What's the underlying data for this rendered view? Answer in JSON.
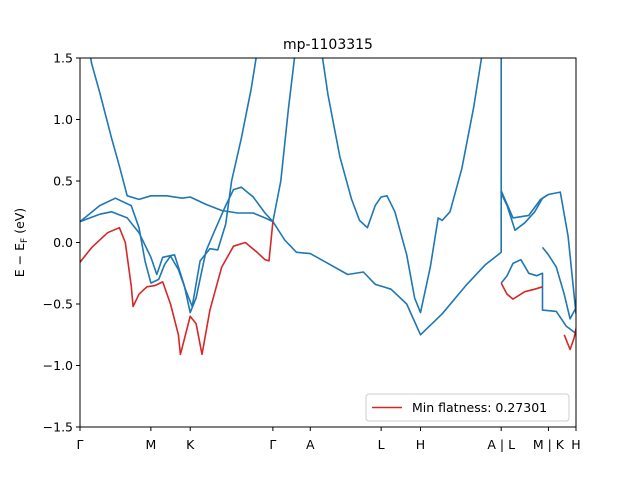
{
  "chart_data": {
    "type": "line",
    "title": "mp-1103315",
    "xlabel": "",
    "ylabel": "E − E_F (eV)",
    "ylabel_main": "E − E",
    "ylabel_sub": "F",
    "ylabel_unit": " (eV)",
    "xlim": [
      0,
      12.6
    ],
    "ylim": [
      -1.5,
      1.5
    ],
    "yticks": [
      -1.5,
      -1.0,
      -0.5,
      0.0,
      0.5,
      1.0,
      1.5
    ],
    "ytick_labels": [
      "−1.5",
      "−1.0",
      "−0.5",
      "0.0",
      "0.5",
      "1.0",
      "1.5"
    ],
    "xticks": [
      {
        "x": 0.0,
        "label": "Γ"
      },
      {
        "x": 1.8,
        "label": "M"
      },
      {
        "x": 2.8,
        "label": "K"
      },
      {
        "x": 4.9,
        "label": "Γ"
      },
      {
        "x": 5.85,
        "label": "A"
      },
      {
        "x": 7.65,
        "label": "L"
      },
      {
        "x": 8.65,
        "label": "H"
      },
      {
        "x": 10.7,
        "label": "A | L"
      },
      {
        "x": 11.9,
        "label": "M | K"
      },
      {
        "x": 12.6,
        "label": "H"
      }
    ],
    "legend": {
      "entries": [
        "Min flatness: 0.27301"
      ],
      "position": "lower-right"
    },
    "grid": false,
    "series": [
      {
        "name": "",
        "color": "#1f77b4",
        "points": [
          [
            0.0,
            1.95
          ],
          [
            0.3,
            1.45
          ],
          [
            0.5,
            1.22
          ],
          [
            0.8,
            0.85
          ],
          [
            1.0,
            0.62
          ],
          [
            1.2,
            0.38
          ],
          [
            1.5,
            0.35
          ],
          [
            1.8,
            0.38
          ],
          [
            2.2,
            0.38
          ],
          [
            2.6,
            0.36
          ],
          [
            2.8,
            0.37
          ],
          [
            3.2,
            0.31
          ],
          [
            3.6,
            0.26
          ],
          [
            4.0,
            0.24
          ],
          [
            4.4,
            0.24
          ],
          [
            4.7,
            0.2
          ],
          [
            4.9,
            0.17
          ],
          [
            5.2,
            0.02
          ],
          [
            5.5,
            -0.08
          ],
          [
            5.85,
            -0.09
          ],
          [
            6.3,
            -0.17
          ],
          [
            6.8,
            -0.26
          ],
          [
            7.2,
            -0.24
          ],
          [
            7.5,
            -0.34
          ],
          [
            7.9,
            -0.38
          ],
          [
            8.3,
            -0.5
          ],
          [
            8.65,
            -0.75
          ],
          [
            9.2,
            -0.58
          ],
          [
            9.8,
            -0.35
          ],
          [
            10.3,
            -0.18
          ],
          [
            10.7,
            -0.08
          ],
          [
            10.7,
            0.42
          ],
          [
            11.0,
            0.2
          ],
          [
            11.4,
            0.22
          ],
          [
            11.7,
            0.35
          ],
          [
            11.9,
            0.39
          ],
          [
            12.2,
            0.41
          ],
          [
            12.4,
            0.05
          ],
          [
            12.6,
            -0.58
          ]
        ]
      },
      {
        "name": "",
        "color": "#1f77b4",
        "points": [
          [
            0.0,
            0.17
          ],
          [
            0.5,
            0.23
          ],
          [
            0.8,
            0.25
          ],
          [
            1.2,
            0.2
          ],
          [
            1.5,
            0.08
          ],
          [
            1.8,
            -0.12
          ],
          [
            1.95,
            -0.26
          ],
          [
            2.1,
            -0.12
          ],
          [
            2.4,
            -0.1
          ],
          [
            2.65,
            -0.35
          ],
          [
            2.8,
            -0.57
          ],
          [
            2.95,
            -0.45
          ],
          [
            3.2,
            -0.07
          ],
          [
            3.4,
            0.08
          ],
          [
            3.7,
            0.3
          ],
          [
            3.9,
            0.43
          ],
          [
            4.1,
            0.45
          ],
          [
            4.4,
            0.37
          ],
          [
            4.7,
            0.24
          ],
          [
            4.9,
            0.17
          ]
        ]
      },
      {
        "name": "",
        "color": "#1f77b4",
        "points": [
          [
            0.0,
            0.17
          ],
          [
            0.5,
            0.3
          ],
          [
            0.9,
            0.36
          ],
          [
            1.3,
            0.3
          ],
          [
            1.5,
            0.12
          ],
          [
            1.65,
            -0.15
          ],
          [
            1.8,
            -0.33
          ],
          [
            2.0,
            -0.3
          ],
          [
            2.15,
            -0.18
          ],
          [
            2.3,
            -0.11
          ],
          [
            2.5,
            -0.22
          ],
          [
            2.7,
            -0.4
          ],
          [
            2.85,
            -0.52
          ],
          [
            3.05,
            -0.15
          ],
          [
            3.3,
            -0.05
          ],
          [
            3.5,
            -0.06
          ],
          [
            3.7,
            0.15
          ],
          [
            3.85,
            0.5
          ],
          [
            4.1,
            0.85
          ],
          [
            4.35,
            1.25
          ],
          [
            4.5,
            1.55
          ]
        ]
      },
      {
        "name": "",
        "color": "#1f77b4",
        "points": [
          [
            4.9,
            0.17
          ],
          [
            5.1,
            0.5
          ],
          [
            5.3,
            1.1
          ],
          [
            5.45,
            1.5
          ],
          [
            5.55,
            1.85
          ]
        ]
      },
      {
        "name": "",
        "color": "#1f77b4",
        "points": [
          [
            6.0,
            1.85
          ],
          [
            6.3,
            1.2
          ],
          [
            6.6,
            0.7
          ],
          [
            6.9,
            0.35
          ],
          [
            7.1,
            0.18
          ],
          [
            7.3,
            0.12
          ],
          [
            7.5,
            0.3
          ],
          [
            7.65,
            0.37
          ],
          [
            7.8,
            0.38
          ],
          [
            8.0,
            0.25
          ],
          [
            8.3,
            -0.1
          ],
          [
            8.5,
            -0.45
          ],
          [
            8.65,
            -0.57
          ],
          [
            8.9,
            -0.2
          ],
          [
            9.1,
            0.2
          ],
          [
            9.2,
            0.18
          ],
          [
            9.4,
            0.25
          ],
          [
            9.7,
            0.6
          ],
          [
            10.0,
            1.1
          ],
          [
            10.2,
            1.5
          ],
          [
            10.3,
            1.85
          ]
        ]
      },
      {
        "name": "",
        "color": "#1f77b4",
        "points": [
          [
            10.7,
            1.55
          ],
          [
            10.7,
            0.4
          ],
          [
            10.85,
            0.3
          ],
          [
            11.05,
            0.1
          ],
          [
            11.3,
            0.16
          ],
          [
            11.55,
            0.25
          ],
          [
            11.75,
            0.36
          ],
          [
            11.9,
            0.39
          ]
        ]
      },
      {
        "name": "",
        "color": "#1f77b4",
        "points": [
          [
            10.7,
            -0.33
          ],
          [
            10.85,
            -0.27
          ],
          [
            11.0,
            -0.17
          ],
          [
            11.2,
            -0.14
          ],
          [
            11.4,
            -0.25
          ],
          [
            11.6,
            -0.27
          ],
          [
            11.75,
            -0.25
          ],
          [
            11.75,
            -0.55
          ],
          [
            12.1,
            -0.56
          ],
          [
            12.35,
            -0.68
          ],
          [
            12.6,
            -0.74
          ]
        ]
      },
      {
        "name": "",
        "color": "#1f77b4",
        "points": [
          [
            11.75,
            -0.04
          ],
          [
            11.75,
            -0.04
          ],
          [
            11.9,
            -0.1
          ],
          [
            12.1,
            -0.2
          ],
          [
            12.3,
            -0.42
          ],
          [
            12.45,
            -0.62
          ],
          [
            12.6,
            -0.53
          ]
        ]
      },
      {
        "name": "Min flatness: 0.27301",
        "color": "#d62728",
        "points": [
          [
            0.0,
            -0.16
          ],
          [
            0.3,
            -0.04
          ],
          [
            0.7,
            0.08
          ],
          [
            1.0,
            0.12
          ],
          [
            1.15,
            0.0
          ],
          [
            1.3,
            -0.35
          ],
          [
            1.35,
            -0.52
          ],
          [
            1.5,
            -0.42
          ],
          [
            1.7,
            -0.36
          ],
          [
            1.9,
            -0.35
          ],
          [
            2.1,
            -0.32
          ],
          [
            2.3,
            -0.5
          ],
          [
            2.5,
            -0.75
          ],
          [
            2.55,
            -0.91
          ],
          [
            2.8,
            -0.6
          ],
          [
            2.95,
            -0.66
          ],
          [
            3.1,
            -0.91
          ],
          [
            3.3,
            -0.55
          ],
          [
            3.6,
            -0.2
          ],
          [
            3.9,
            -0.03
          ],
          [
            4.2,
            0.0
          ],
          [
            4.5,
            -0.08
          ],
          [
            4.7,
            -0.14
          ],
          [
            4.8,
            -0.15
          ],
          [
            4.9,
            0.17
          ]
        ]
      },
      {
        "name": "",
        "color": "#d62728",
        "points": [
          [
            10.7,
            -0.33
          ],
          [
            10.85,
            -0.42
          ],
          [
            11.0,
            -0.46
          ],
          [
            11.3,
            -0.4
          ],
          [
            11.55,
            -0.38
          ],
          [
            11.75,
            -0.36
          ]
        ]
      },
      {
        "name": "",
        "color": "#d62728",
        "points": [
          [
            12.3,
            -0.75
          ],
          [
            12.45,
            -0.87
          ],
          [
            12.55,
            -0.78
          ],
          [
            12.6,
            -0.7
          ]
        ]
      }
    ]
  }
}
